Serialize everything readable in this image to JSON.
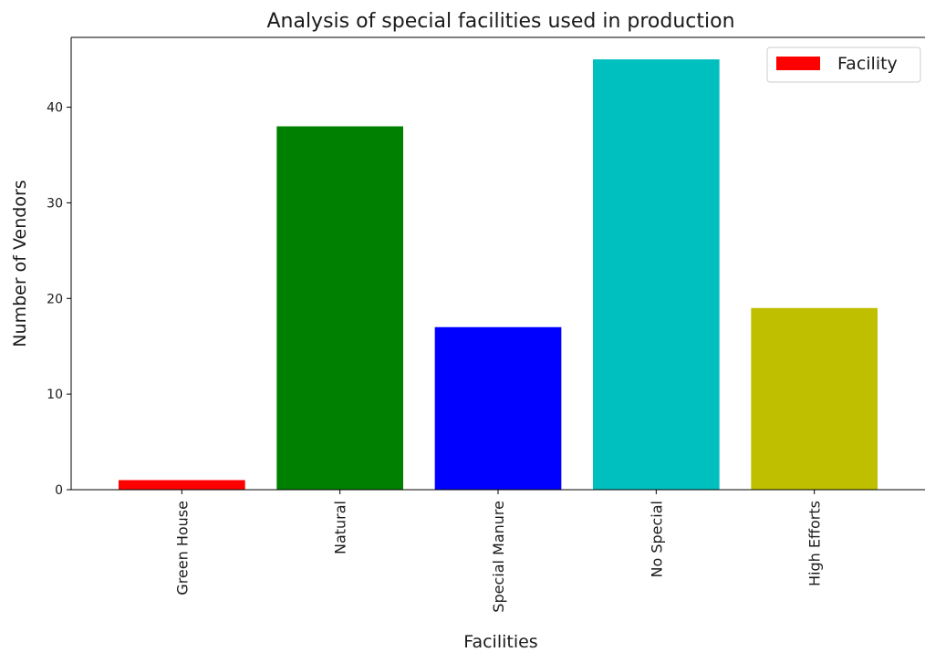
{
  "chart_data": {
    "type": "bar",
    "title": "Analysis of special facilities used in production",
    "xlabel": "Facilities",
    "ylabel": "Number of Vendors",
    "categories": [
      "Green House",
      "Natural",
      "Special Manure",
      "No Special",
      "High Efforts"
    ],
    "values": [
      1,
      38,
      17,
      45,
      19
    ],
    "colors": [
      "#ff0000",
      "#008000",
      "#0000ff",
      "#00bfbf",
      "#bfbf00"
    ],
    "ylim": [
      0,
      47.3
    ],
    "yticks": [
      0,
      10,
      20,
      30,
      40
    ],
    "grid": false,
    "legend": {
      "position": "top-right",
      "label": "Facility",
      "color": "#ff0000"
    }
  }
}
